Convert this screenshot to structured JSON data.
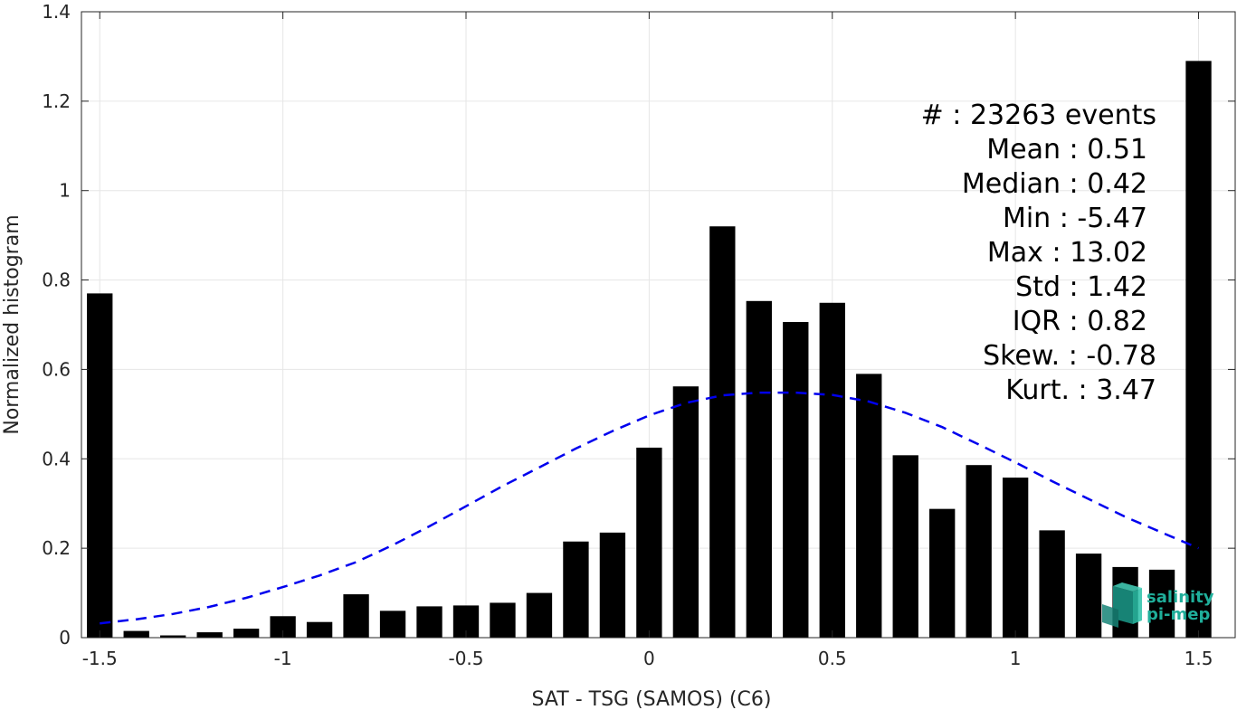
{
  "chart_data": {
    "type": "bar",
    "title": "",
    "xlabel": "SAT - TSG (SAMOS) (C6)",
    "ylabel": "Normalized histogram",
    "xlim": [
      -1.55,
      1.6
    ],
    "ylim": [
      0,
      1.4
    ],
    "grid": true,
    "x_ticks": [
      -1.5,
      -1,
      -0.5,
      0,
      0.5,
      1,
      1.5
    ],
    "x_tick_labels": [
      "-1.5",
      "-1",
      "-0.5",
      "0",
      "0.5",
      "1",
      "1.5"
    ],
    "y_ticks": [
      0,
      0.2,
      0.4,
      0.6,
      0.8,
      1,
      1.2,
      1.4
    ],
    "y_tick_labels": [
      "0",
      "0.2",
      "0.4",
      "0.6",
      "0.8",
      "1",
      "1.2",
      "1.4"
    ],
    "bar_width": 0.07,
    "series": [
      {
        "type": "bar",
        "color": "#000000",
        "x": [
          -1.5,
          -1.4,
          -1.3,
          -1.2,
          -1.1,
          -1.0,
          -0.9,
          -0.8,
          -0.7,
          -0.6,
          -0.5,
          -0.4,
          -0.3,
          -0.2,
          -0.1,
          0.0,
          0.1,
          0.2,
          0.3,
          0.4,
          0.5,
          0.6,
          0.7,
          0.8,
          0.9,
          1.0,
          1.1,
          1.2,
          1.3,
          1.4,
          1.5
        ],
        "values": [
          0.77,
          0.015,
          0.005,
          0.012,
          0.02,
          0.048,
          0.035,
          0.097,
          0.06,
          0.07,
          0.072,
          0.078,
          0.1,
          0.215,
          0.235,
          0.425,
          0.562,
          0.92,
          0.753,
          0.706,
          0.749,
          0.59,
          0.408,
          0.288,
          0.386,
          0.358,
          0.24,
          0.188,
          0.158,
          0.152,
          1.29
        ]
      },
      {
        "type": "line",
        "style": "dashed",
        "color": "#0000ee",
        "x": [
          -1.5,
          -1.4,
          -1.3,
          -1.2,
          -1.1,
          -1.0,
          -0.9,
          -0.8,
          -0.7,
          -0.6,
          -0.5,
          -0.4,
          -0.3,
          -0.2,
          -0.1,
          0.0,
          0.1,
          0.2,
          0.3,
          0.4,
          0.5,
          0.6,
          0.7,
          0.8,
          0.9,
          1.0,
          1.1,
          1.2,
          1.3,
          1.4,
          1.5
        ],
        "values": [
          0.032,
          0.041,
          0.053,
          0.069,
          0.089,
          0.113,
          0.139,
          0.169,
          0.207,
          0.249,
          0.294,
          0.339,
          0.381,
          0.423,
          0.462,
          0.497,
          0.525,
          0.542,
          0.548,
          0.548,
          0.543,
          0.528,
          0.503,
          0.471,
          0.432,
          0.392,
          0.35,
          0.31,
          0.27,
          0.235,
          0.2
        ]
      }
    ],
    "annotations": [
      "#  : 23263 events",
      "Mean : 0.51",
      "Median : 0.42",
      "Min : -5.47",
      "Max : 13.02",
      "Std : 1.42",
      "IQR : 0.82",
      "Skew. : -0.78",
      "Kurt. : 3.47"
    ]
  },
  "logo": {
    "line1": "salinity",
    "line2": "pi-mep",
    "color": "#1fae9a"
  }
}
